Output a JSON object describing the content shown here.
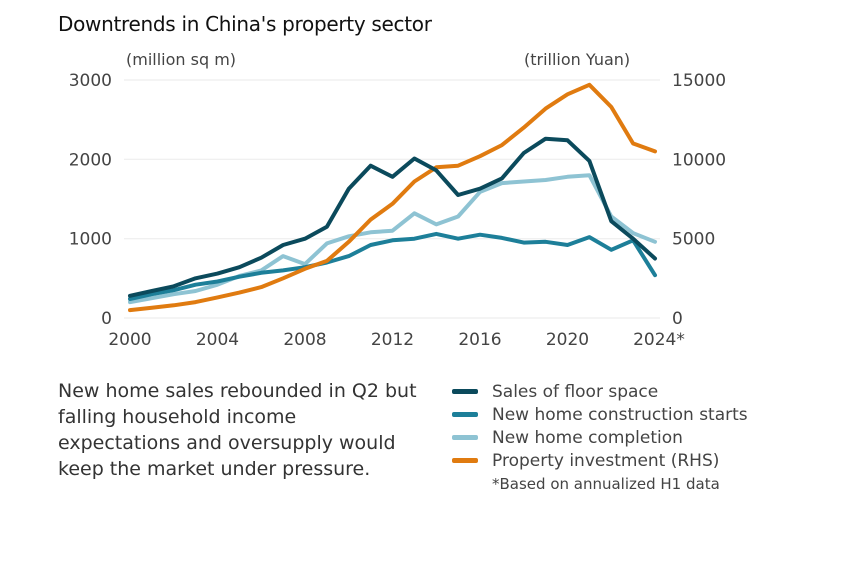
{
  "chart_data": {
    "type": "line",
    "title": "Downtrends in China's property sector",
    "ylabel_left": "(million sq m)",
    "ylabel_right": "(trillion Yuan)",
    "x": [
      2000,
      2001,
      2002,
      2003,
      2004,
      2005,
      2006,
      2007,
      2008,
      2009,
      2010,
      2011,
      2012,
      2013,
      2014,
      2015,
      2016,
      2017,
      2018,
      2019,
      2020,
      2021,
      2022,
      2023,
      2024
    ],
    "x_ticks": [
      2000,
      2004,
      2008,
      2012,
      2016,
      2020,
      2024
    ],
    "x_tick_labels": [
      "2000",
      "2004",
      "2008",
      "2012",
      "2016",
      "2020",
      "2024*"
    ],
    "ylim_left": [
      0,
      3000
    ],
    "y_ticks_left": [
      0,
      1000,
      2000,
      3000
    ],
    "y_tick_labels_left": [
      "0",
      "1000",
      "2000",
      "3000"
    ],
    "ylim_right": [
      0,
      15000
    ],
    "y_ticks_right": [
      0,
      5000,
      10000,
      15000
    ],
    "y_tick_labels_right": [
      "0",
      "5000",
      "10000",
      "15000"
    ],
    "grid": true,
    "series": [
      {
        "name": "Sales of floor space",
        "axis": "left",
        "color": "#0b4a5c",
        "values": [
          280,
          340,
          400,
          500,
          560,
          640,
          760,
          920,
          1000,
          1150,
          1630,
          1920,
          1780,
          2010,
          1860,
          1550,
          1630,
          1760,
          2080,
          2260,
          2240,
          1980,
          1220,
          1000,
          750
        ]
      },
      {
        "name": "New home construction starts",
        "axis": "left",
        "color": "#1d7f99",
        "values": [
          240,
          300,
          350,
          420,
          460,
          520,
          570,
          600,
          640,
          700,
          780,
          920,
          980,
          1000,
          1060,
          1000,
          1050,
          1010,
          950,
          960,
          920,
          1020,
          860,
          980,
          540
        ]
      },
      {
        "name": "New home completion",
        "axis": "left",
        "color": "#8ec3d3",
        "values": [
          200,
          250,
          300,
          340,
          420,
          530,
          600,
          780,
          680,
          940,
          1030,
          1080,
          1100,
          1320,
          1180,
          1280,
          1590,
          1700,
          1720,
          1740,
          1780,
          1800,
          1280,
          1070,
          960
        ]
      },
      {
        "name": "Property investment (RHS)",
        "axis": "right",
        "color": "#e07b10",
        "values": [
          500,
          650,
          800,
          1000,
          1300,
          1600,
          1950,
          2500,
          3100,
          3600,
          4800,
          6200,
          7200,
          8600,
          9500,
          9600,
          10200,
          10900,
          12000,
          13200,
          14100,
          14700,
          13300,
          11000,
          10500
        ]
      }
    ],
    "legend_position": "bottom-right",
    "annotation": "*Based on annualized H1 data"
  },
  "note": "New home sales rebounded in Q2 but falling household income expectations and oversupply would keep the market under pressure.",
  "legend": [
    {
      "label": "Sales of floor space",
      "color": "#0b4a5c"
    },
    {
      "label": "New home construction starts",
      "color": "#1d7f99"
    },
    {
      "label": "New home completion",
      "color": "#8ec3d3"
    },
    {
      "label": "Property investment (RHS)",
      "color": "#e07b10"
    }
  ],
  "footnote": "*Based on annualized H1 data"
}
